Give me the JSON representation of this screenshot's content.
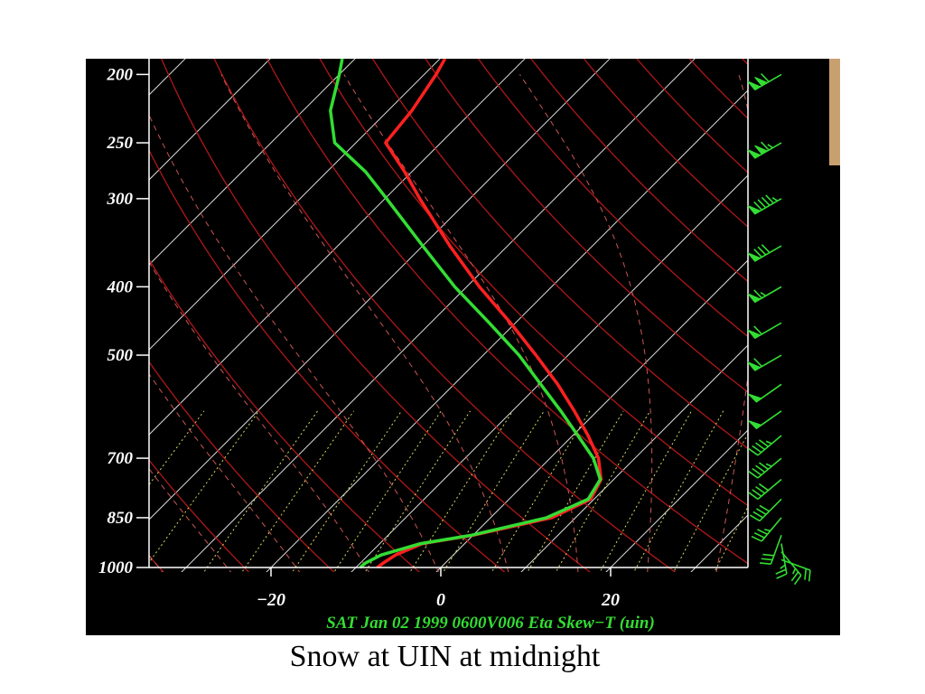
{
  "caption": "Snow at UIN at midnight",
  "chart_data": {
    "type": "line",
    "subtype": "skew-T log-p diagram",
    "title": "SAT Jan 02 1999 0600V006 Eta Skew−T (uin)",
    "y_scale": "log",
    "y_ticks": [
      200,
      250,
      300,
      400,
      500,
      700,
      850,
      1000
    ],
    "y_tick_labels": [
      "200",
      "250",
      "300",
      "400",
      "500",
      "700",
      "850",
      "1000"
    ],
    "x_ticks": [
      -20,
      0,
      20
    ],
    "x_tick_labels": [
      "−20",
      "0",
      "20"
    ],
    "ylim": [
      1000,
      190
    ],
    "xlim": [
      -35,
      36
    ],
    "series": [
      {
        "color": "#ff2020",
        "pressure": [
          1000,
          985,
          960,
          925,
          900,
          850,
          800,
          750,
          700,
          650,
          600,
          550,
          500,
          450,
          400,
          350,
          300,
          275,
          250,
          225,
          200,
          190
        ],
        "temperature": [
          -7.5,
          -7.3,
          -6.8,
          -5,
          0,
          7.2,
          9.6,
          8.5,
          5.7,
          1.8,
          -2.7,
          -7.8,
          -13.8,
          -20.6,
          -28.5,
          -36.8,
          -45.9,
          -50.8,
          -56.5,
          -57.2,
          -58.6,
          -59.4
        ]
      },
      {
        "color": "#33dd33",
        "pressure": [
          1000,
          985,
          960,
          925,
          900,
          850,
          800,
          750,
          700,
          650,
          600,
          550,
          500,
          450,
          400,
          350,
          300,
          275,
          250,
          225,
          200,
          190
        ],
        "temperature": [
          -9.5,
          -9.4,
          -8.5,
          -5.2,
          -0.2,
          6.6,
          9.3,
          8.4,
          5.1,
          0.6,
          -4.3,
          -9.8,
          -15.8,
          -23.1,
          -31.4,
          -40,
          -49.8,
          -55.4,
          -62.5,
          -66.8,
          -70,
          -71.5
        ]
      }
    ],
    "wind_barbs": [
      {
        "pressure": 200,
        "speed_kt": 110,
        "direction_deg": 240
      },
      {
        "pressure": 250,
        "speed_kt": 115,
        "direction_deg": 240
      },
      {
        "pressure": 300,
        "speed_kt": 95,
        "direction_deg": 240
      },
      {
        "pressure": 350,
        "speed_kt": 80,
        "direction_deg": 240
      },
      {
        "pressure": 400,
        "speed_kt": 65,
        "direction_deg": 240
      },
      {
        "pressure": 450,
        "speed_kt": 60,
        "direction_deg": 240
      },
      {
        "pressure": 500,
        "speed_kt": 60,
        "direction_deg": 240
      },
      {
        "pressure": 550,
        "speed_kt": 50,
        "direction_deg": 235
      },
      {
        "pressure": 600,
        "speed_kt": 50,
        "direction_deg": 235
      },
      {
        "pressure": 650,
        "speed_kt": 45,
        "direction_deg": 230
      },
      {
        "pressure": 700,
        "speed_kt": 45,
        "direction_deg": 230
      },
      {
        "pressure": 750,
        "speed_kt": 40,
        "direction_deg": 230
      },
      {
        "pressure": 800,
        "speed_kt": 40,
        "direction_deg": 225
      },
      {
        "pressure": 850,
        "speed_kt": 35,
        "direction_deg": 220
      },
      {
        "pressure": 900,
        "speed_kt": 30,
        "direction_deg": 200
      },
      {
        "pressure": 925,
        "speed_kt": 25,
        "direction_deg": 170
      },
      {
        "pressure": 950,
        "speed_kt": 25,
        "direction_deg": 140
      },
      {
        "pressure": 975,
        "speed_kt": 20,
        "direction_deg": 110
      }
    ],
    "grid": true,
    "colors": {
      "background": "#000000",
      "isotherm": "#ffffff",
      "dry_adiabat": "#b01818",
      "moist_adiabat": "#cc5555",
      "mixing_ratio": "#d8d860",
      "barb": "#33dd33"
    }
  }
}
